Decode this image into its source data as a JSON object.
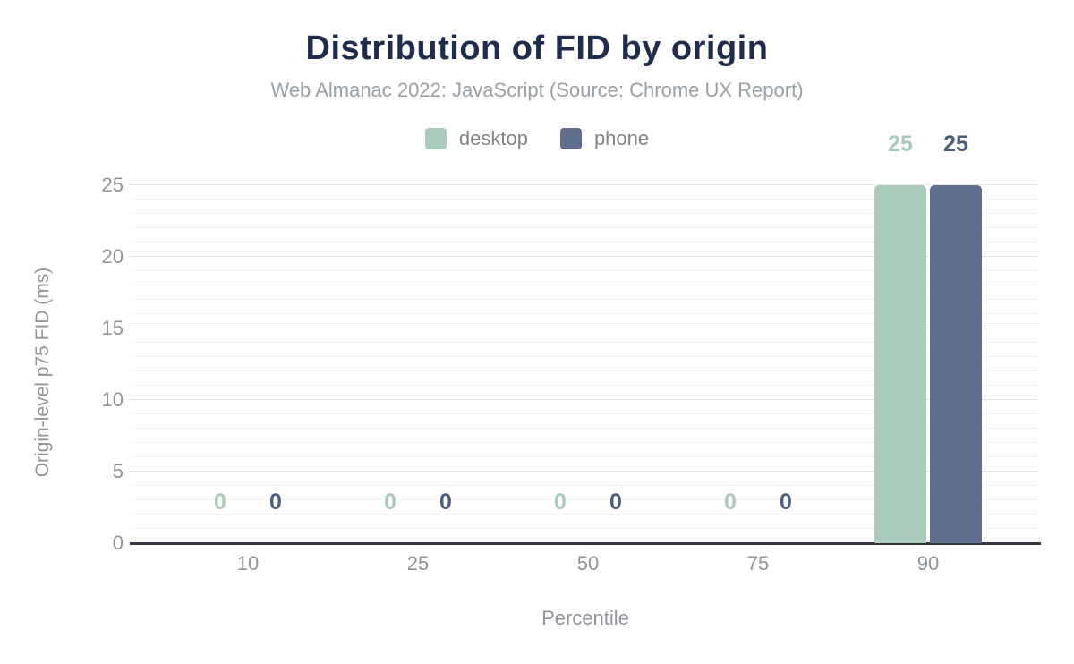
{
  "chart_data": {
    "type": "bar",
    "title": "Distribution of FID by origin",
    "subtitle": "Web Almanac 2022: JavaScript (Source: Chrome UX Report)",
    "xlabel": "Percentile",
    "ylabel": "Origin-level p75 FID (ms)",
    "categories": [
      "10",
      "25",
      "50",
      "75",
      "90"
    ],
    "series": [
      {
        "name": "desktop",
        "color": "#a8cbbb",
        "label_color": "#a9cbba",
        "values": [
          0,
          0,
          0,
          0,
          25
        ]
      },
      {
        "name": "phone",
        "color": "#5f6e8c",
        "label_color": "#4c5e7d",
        "values": [
          0,
          0,
          0,
          0,
          25
        ]
      }
    ],
    "ylim": [
      0,
      25
    ],
    "yticks": [
      0,
      5,
      10,
      15,
      20,
      25
    ],
    "minor_grid_step": 1,
    "major_grid_step": 5,
    "grid": true,
    "legend_position": "top",
    "value_labels_shown": true
  },
  "colors": {
    "title_text": "#1e2d4d",
    "subtitle_text": "#9aa0a4",
    "legend_text": "#7f8488",
    "axis_text": "#8f959a",
    "axis_line": "#31373e",
    "grid_major": "#d2d2d2",
    "grid_minor": "#f4f4f4",
    "background": "#ffffff"
  }
}
